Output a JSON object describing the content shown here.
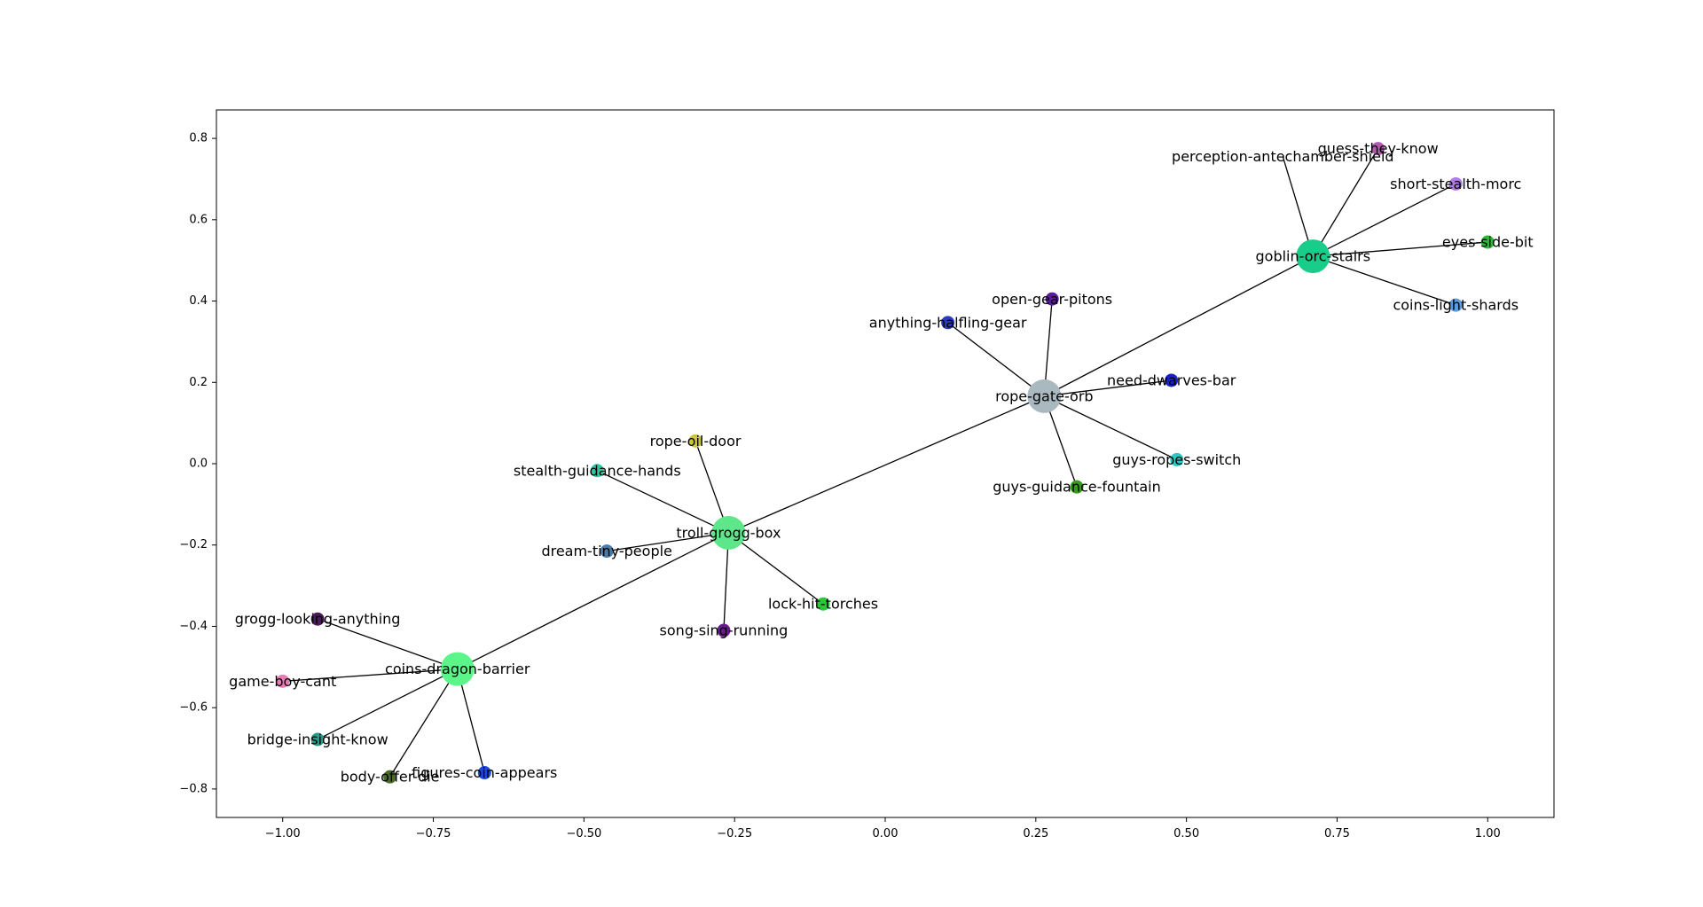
{
  "chart_data": {
    "type": "network",
    "xlim": [
      -1.11,
      1.11
    ],
    "ylim": [
      -0.87,
      0.87
    ],
    "x_ticks": [
      -1.0,
      -0.75,
      -0.5,
      -0.25,
      0.0,
      0.25,
      0.5,
      0.75,
      1.0
    ],
    "x_tick_labels": [
      "−1.00",
      "−0.75",
      "−0.50",
      "−0.25",
      "0.00",
      "0.25",
      "0.50",
      "0.75",
      "1.00"
    ],
    "y_ticks": [
      -0.8,
      -0.6,
      -0.4,
      -0.2,
      0.0,
      0.2,
      0.4,
      0.6,
      0.8
    ],
    "y_tick_labels": [
      "−0.8",
      "−0.6",
      "−0.4",
      "−0.2",
      "0.0",
      "0.2",
      "0.4",
      "0.6",
      "0.8"
    ],
    "nodes": [
      {
        "id": "goblin-orc-stairs",
        "label": "goblin-orc-stairs",
        "x": 0.71,
        "y": 0.51,
        "size": "large",
        "color": "#1acc8a"
      },
      {
        "id": "rope-gate-orb",
        "label": "rope-gate-orb",
        "x": 0.264,
        "y": 0.166,
        "size": "large",
        "color": "#aab8c0"
      },
      {
        "id": "troll-grogg-box",
        "label": "troll-grogg-box",
        "x": -0.26,
        "y": -0.17,
        "size": "large",
        "color": "#5ee68a"
      },
      {
        "id": "coins-dragon-barrier",
        "label": "coins-dragon-barrier",
        "x": -0.71,
        "y": -0.505,
        "size": "large",
        "color": "#5cf58a"
      },
      {
        "id": "perception-antechamber-shield",
        "label": "perception-antechamber-shield",
        "x": 0.66,
        "y": 0.755,
        "size": "none",
        "color": ""
      },
      {
        "id": "guess-they-know",
        "label": "guess-they-know",
        "x": 0.818,
        "y": 0.775,
        "size": "small",
        "color": "#b05ab0"
      },
      {
        "id": "short-stealth-morc",
        "label": "short-stealth-morc",
        "x": 0.947,
        "y": 0.688,
        "size": "small",
        "color": "#b07ae8"
      },
      {
        "id": "eyes-side-bit",
        "label": "eyes-side-bit",
        "x": 1.0,
        "y": 0.545,
        "size": "small",
        "color": "#2ab83a"
      },
      {
        "id": "coins-light-shards",
        "label": "coins-light-shards",
        "x": 0.947,
        "y": 0.39,
        "size": "small",
        "color": "#5a9ae0"
      },
      {
        "id": "open-gear-pitons",
        "label": "open-gear-pitons",
        "x": 0.277,
        "y": 0.405,
        "size": "small",
        "color": "#5a1a9a"
      },
      {
        "id": "anything-halfling-gear",
        "label": "anything-halfling-gear",
        "x": 0.104,
        "y": 0.347,
        "size": "small",
        "color": "#2a3ac0"
      },
      {
        "id": "need-dwarves-bar",
        "label": "need-dwarves-bar",
        "x": 0.475,
        "y": 0.205,
        "size": "small",
        "color": "#1a22c8"
      },
      {
        "id": "guys-ropes-switch",
        "label": "guys-ropes-switch",
        "x": 0.484,
        "y": 0.01,
        "size": "small",
        "color": "#2ac8c0"
      },
      {
        "id": "guys-guidance-fountain",
        "label": "guys-guidance-fountain",
        "x": 0.318,
        "y": -0.057,
        "size": "small",
        "color": "#3a9a1a"
      },
      {
        "id": "rope-oil-door",
        "label": "rope-oil-door",
        "x": -0.315,
        "y": 0.056,
        "size": "small",
        "color": "#c8c83a"
      },
      {
        "id": "stealth-guidance-hands",
        "label": "stealth-guidance-hands",
        "x": -0.478,
        "y": -0.017,
        "size": "small",
        "color": "#2ac8a0"
      },
      {
        "id": "dream-tiny-people",
        "label": "dream-tiny-people",
        "x": -0.462,
        "y": -0.215,
        "size": "small",
        "color": "#4a7aa8"
      },
      {
        "id": "lock-hit-torches",
        "label": "lock-hit-torches",
        "x": -0.103,
        "y": -0.345,
        "size": "small",
        "color": "#2ac83a"
      },
      {
        "id": "song-sing-running",
        "label": "song-sing-running",
        "x": -0.268,
        "y": -0.41,
        "size": "small",
        "color": "#6a1a8a"
      },
      {
        "id": "grogg-looking-anything",
        "label": "grogg-looking-anything",
        "x": -0.942,
        "y": -0.382,
        "size": "small",
        "color": "#4a1a5a"
      },
      {
        "id": "game-boy-cant",
        "label": "game-boy-cant",
        "x": -1.0,
        "y": -0.535,
        "size": "small",
        "color": "#e87ab8"
      },
      {
        "id": "bridge-insight-know",
        "label": "bridge-insight-know",
        "x": -0.942,
        "y": -0.678,
        "size": "small",
        "color": "#2a9a8a"
      },
      {
        "id": "body-offer-die",
        "label": "body-offer-die",
        "x": -0.822,
        "y": -0.77,
        "size": "small",
        "color": "#4a6a2a"
      },
      {
        "id": "figures-coin-appears",
        "label": "figures-coin-appears",
        "x": -0.665,
        "y": -0.76,
        "size": "small",
        "color": "#1a4ad8"
      }
    ],
    "edges": [
      [
        "goblin-orc-stairs",
        "perception-antechamber-shield"
      ],
      [
        "goblin-orc-stairs",
        "guess-they-know"
      ],
      [
        "goblin-orc-stairs",
        "short-stealth-morc"
      ],
      [
        "goblin-orc-stairs",
        "eyes-side-bit"
      ],
      [
        "goblin-orc-stairs",
        "coins-light-shards"
      ],
      [
        "goblin-orc-stairs",
        "rope-gate-orb"
      ],
      [
        "rope-gate-orb",
        "open-gear-pitons"
      ],
      [
        "rope-gate-orb",
        "anything-halfling-gear"
      ],
      [
        "rope-gate-orb",
        "need-dwarves-bar"
      ],
      [
        "rope-gate-orb",
        "guys-ropes-switch"
      ],
      [
        "rope-gate-orb",
        "guys-guidance-fountain"
      ],
      [
        "rope-gate-orb",
        "troll-grogg-box"
      ],
      [
        "troll-grogg-box",
        "rope-oil-door"
      ],
      [
        "troll-grogg-box",
        "stealth-guidance-hands"
      ],
      [
        "troll-grogg-box",
        "dream-tiny-people"
      ],
      [
        "troll-grogg-box",
        "lock-hit-torches"
      ],
      [
        "troll-grogg-box",
        "song-sing-running"
      ],
      [
        "troll-grogg-box",
        "coins-dragon-barrier"
      ],
      [
        "coins-dragon-barrier",
        "grogg-looking-anything"
      ],
      [
        "coins-dragon-barrier",
        "game-boy-cant"
      ],
      [
        "coins-dragon-barrier",
        "bridge-insight-know"
      ],
      [
        "coins-dragon-barrier",
        "body-offer-die"
      ],
      [
        "coins-dragon-barrier",
        "figures-coin-appears"
      ]
    ]
  }
}
